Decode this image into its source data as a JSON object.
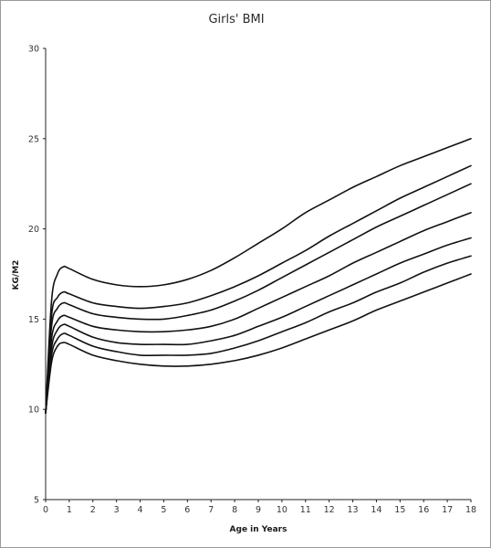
{
  "chart_data": {
    "type": "line",
    "title": "Girls' BMI",
    "xlabel": "Age in Years",
    "ylabel": "KG/M2",
    "xlim": [
      0,
      18
    ],
    "ylim": [
      5,
      30
    ],
    "xticks": [
      0,
      1,
      2,
      3,
      4,
      5,
      6,
      7,
      8,
      9,
      10,
      11,
      12,
      13,
      14,
      15,
      16,
      17,
      18
    ],
    "yticks": [
      5,
      10,
      15,
      20,
      25,
      30
    ],
    "grid": false,
    "line_color": "#111111",
    "x": [
      0,
      0.25,
      0.5,
      0.75,
      1,
      2,
      3,
      4,
      5,
      6,
      7,
      8,
      9,
      10,
      11,
      12,
      13,
      14,
      15,
      16,
      17,
      18
    ],
    "series": [
      {
        "values": [
          9.8,
          12.6,
          13.5,
          13.7,
          13.6,
          13.0,
          12.7,
          12.5,
          12.4,
          12.4,
          12.5,
          12.7,
          13.0,
          13.4,
          13.9,
          14.4,
          14.9,
          15.5,
          16.0,
          16.5,
          17.0,
          17.5
        ]
      },
      {
        "values": [
          9.8,
          13.0,
          13.9,
          14.2,
          14.1,
          13.5,
          13.2,
          13.0,
          13.0,
          13.0,
          13.1,
          13.4,
          13.8,
          14.3,
          14.8,
          15.4,
          15.9,
          16.5,
          17.0,
          17.6,
          18.1,
          18.5
        ]
      },
      {
        "values": [
          9.8,
          13.4,
          14.4,
          14.7,
          14.6,
          14.0,
          13.7,
          13.6,
          13.6,
          13.6,
          13.8,
          14.1,
          14.6,
          15.1,
          15.7,
          16.3,
          16.9,
          17.5,
          18.1,
          18.6,
          19.1,
          19.5
        ]
      },
      {
        "values": [
          9.8,
          13.9,
          14.9,
          15.2,
          15.1,
          14.6,
          14.4,
          14.3,
          14.3,
          14.4,
          14.6,
          15.0,
          15.6,
          16.2,
          16.8,
          17.4,
          18.1,
          18.7,
          19.3,
          19.9,
          20.4,
          20.9
        ]
      },
      {
        "values": [
          9.8,
          14.6,
          15.6,
          15.9,
          15.8,
          15.3,
          15.1,
          15.0,
          15.0,
          15.2,
          15.5,
          16.0,
          16.6,
          17.3,
          18.0,
          18.7,
          19.4,
          20.1,
          20.7,
          21.3,
          21.9,
          22.5
        ]
      },
      {
        "values": [
          9.8,
          15.2,
          16.2,
          16.5,
          16.4,
          15.9,
          15.7,
          15.6,
          15.7,
          15.9,
          16.3,
          16.8,
          17.4,
          18.1,
          18.8,
          19.6,
          20.3,
          21.0,
          21.7,
          22.3,
          22.9,
          23.5
        ]
      },
      {
        "values": [
          9.8,
          16.0,
          17.5,
          17.9,
          17.8,
          17.2,
          16.9,
          16.8,
          16.9,
          17.2,
          17.7,
          18.4,
          19.2,
          20.0,
          20.9,
          21.6,
          22.3,
          22.9,
          23.5,
          24.0,
          24.5,
          25.0
        ]
      }
    ]
  }
}
